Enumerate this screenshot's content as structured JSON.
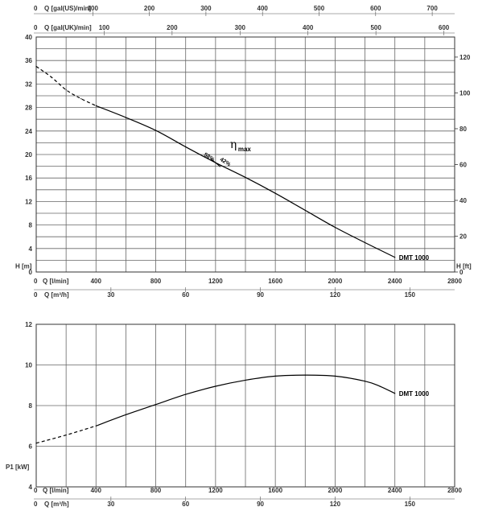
{
  "chart_data": [
    {
      "type": "line",
      "title": "",
      "curve_label": "DMT 1000",
      "eta_symbol": "η",
      "eta_sub": "max",
      "efficiency_labels": [
        "58%",
        "42%"
      ],
      "eta_max_at_q": 1200,
      "ylabel": "H [m]",
      "ylabel_right": "H [ft]",
      "ylim": [
        0,
        40
      ],
      "yticks": [
        0,
        4,
        8,
        12,
        16,
        20,
        24,
        28,
        32,
        36,
        40
      ],
      "ylim_right": [
        0,
        131.2
      ],
      "yticks_right": [
        0,
        20,
        40,
        60,
        80,
        100,
        120
      ],
      "xlabel": "Q [l/min]",
      "xlim": [
        0,
        2800
      ],
      "xticks": [
        0,
        400,
        800,
        1200,
        1600,
        2000,
        2400,
        2800
      ],
      "secondary_axes": [
        {
          "label": "Q [m³/h]",
          "ticks": [
            0,
            30,
            60,
            90,
            120,
            150
          ],
          "factor_from_lmin": 0.06
        },
        {
          "label": "Q [gal(UK)/min]",
          "ticks": [
            0,
            100,
            200,
            300,
            400,
            500,
            600
          ],
          "factor_from_lmin": 0.219969
        },
        {
          "label": "Q [gal(US)/min]",
          "ticks": [
            0,
            100,
            200,
            300,
            400,
            500,
            600,
            700
          ],
          "factor_from_lmin": 0.264172
        }
      ],
      "grid": true,
      "series": [
        {
          "name": "DMT 1000",
          "x": [
            0,
            100,
            200,
            300,
            400,
            600,
            800,
            1000,
            1200,
            1400,
            1600,
            1800,
            2000,
            2200,
            2400
          ],
          "y": [
            35,
            33.2,
            31,
            29.5,
            28.3,
            26.3,
            24.1,
            21.3,
            18.6,
            16.1,
            13.4,
            10.5,
            7.6,
            5,
            2.5
          ],
          "dashed_until_x": 400
        }
      ]
    },
    {
      "type": "line",
      "title": "",
      "curve_label": "DMT 1000",
      "ylabel": "P1 [kW]",
      "ylim": [
        4,
        12
      ],
      "yticks": [
        4,
        6,
        8,
        10,
        12
      ],
      "xlabel": "Q [l/min]",
      "xlim": [
        0,
        2800
      ],
      "xticks": [
        0,
        400,
        800,
        1200,
        1600,
        2000,
        2400,
        2800
      ],
      "secondary_axes": [
        {
          "label": "Q [m³/h]",
          "ticks": [
            0,
            30,
            60,
            90,
            120,
            150
          ],
          "factor_from_lmin": 0.06
        }
      ],
      "grid": true,
      "series": [
        {
          "name": "DMT 1000",
          "x": [
            0,
            200,
            400,
            600,
            800,
            1000,
            1200,
            1400,
            1600,
            1800,
            2000,
            2200,
            2300,
            2400
          ],
          "y": [
            6.15,
            6.55,
            7.0,
            7.55,
            8.05,
            8.55,
            8.95,
            9.25,
            9.45,
            9.5,
            9.45,
            9.2,
            8.95,
            8.6
          ],
          "dashed_until_x": 400
        }
      ]
    }
  ]
}
